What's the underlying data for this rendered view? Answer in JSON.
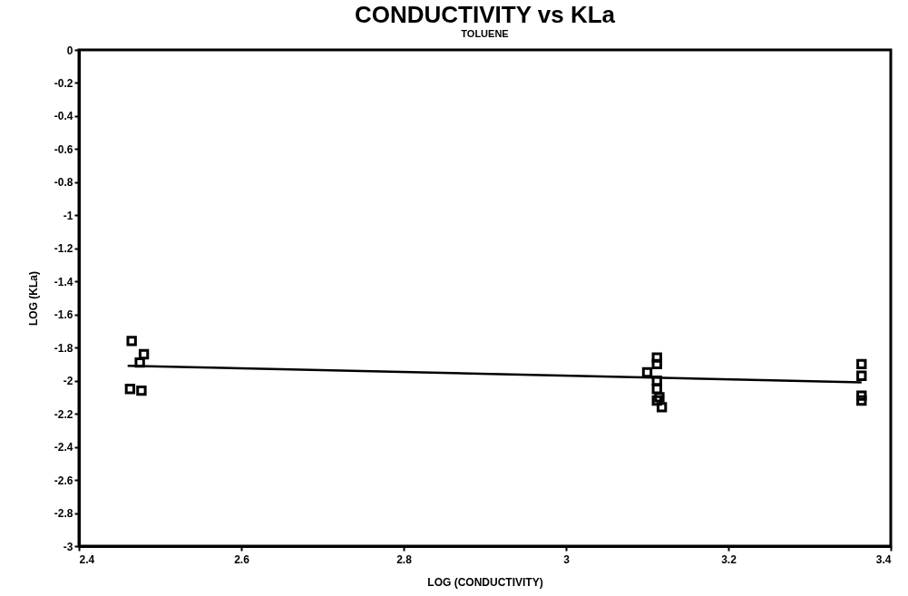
{
  "chart_data": {
    "type": "scatter",
    "title": "CONDUCTIVITY vs KLa",
    "subtitle": "TOLUENE",
    "xlabel": "LOG (CONDUCTIVITY)",
    "ylabel": "LOG (KLa)",
    "xlim": [
      2.4,
      3.4
    ],
    "xticks": [
      2.4,
      2.6,
      2.8,
      3,
      3.2,
      3.4
    ],
    "ylim": [
      -3,
      0
    ],
    "yticks": [
      -3,
      -2.8,
      -2.6,
      -2.4,
      -2.2,
      -2,
      -1.8,
      -1.6,
      -1.4,
      -1.2,
      -1,
      -0.8,
      -0.6,
      -0.4,
      -0.2,
      0
    ],
    "grid": false,
    "series": [
      {
        "type": "scatter",
        "marker": "square",
        "color": "#000000",
        "x": [
          2.465,
          2.48,
          2.475,
          2.463,
          2.477,
          3.1,
          3.112,
          3.112,
          3.112,
          3.112,
          3.115,
          3.112,
          3.118,
          3.364,
          3.364,
          3.364,
          3.364
        ],
        "values": [
          -1.76,
          -1.84,
          -1.89,
          -2.05,
          -2.06,
          -1.95,
          -1.86,
          -1.9,
          -2.0,
          -2.05,
          -2.1,
          -2.12,
          -2.16,
          -1.9,
          -1.97,
          -2.09,
          -2.12
        ]
      },
      {
        "type": "line",
        "color": "#000000",
        "x": [
          2.46,
          3.364
        ],
        "values": [
          -1.91,
          -2.01
        ]
      }
    ]
  }
}
